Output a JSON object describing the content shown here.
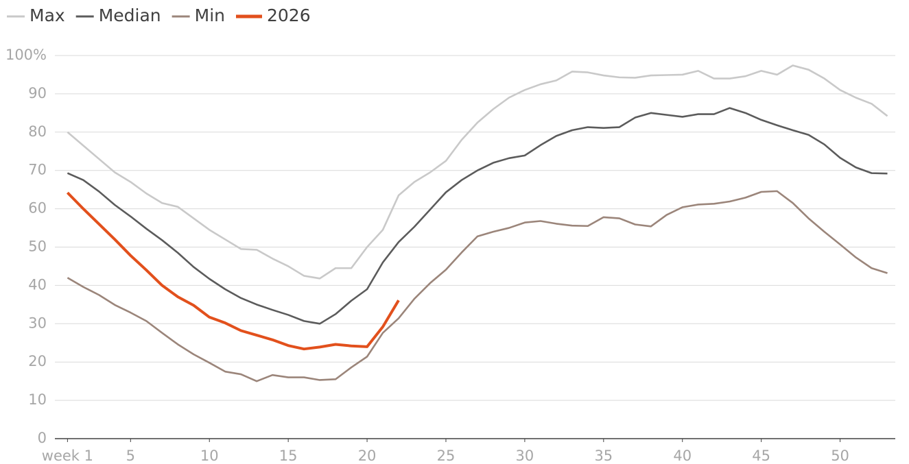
{
  "chart_data": {
    "type": "line",
    "x": [
      1,
      2,
      3,
      4,
      5,
      6,
      7,
      8,
      9,
      10,
      11,
      12,
      13,
      14,
      15,
      16,
      17,
      18,
      19,
      20,
      21,
      22,
      23,
      24,
      25,
      26,
      27,
      28,
      29,
      30,
      31,
      32,
      33,
      34,
      35,
      36,
      37,
      38,
      39,
      40,
      41,
      42,
      43,
      44,
      45,
      46,
      47,
      48,
      49,
      50,
      51,
      52,
      53
    ],
    "series": [
      {
        "name": "Max",
        "color": "#c9c9c9",
        "values": [
          80,
          76.5,
          73,
          69.5,
          67,
          64,
          61.5,
          60.5,
          57.5,
          54.5,
          52,
          49.5,
          49.3,
          47,
          45,
          42.5,
          41.8,
          44.5,
          44.5,
          50,
          54.5,
          63.5,
          67,
          69.5,
          72.5,
          78,
          82.5,
          86,
          89,
          91,
          92.5,
          93.5,
          95.8,
          95.6,
          94.8,
          94.3,
          94.2,
          94.8,
          94.9,
          95,
          96,
          94,
          94,
          94.6,
          96,
          95,
          97.4,
          96.3,
          94,
          91,
          89,
          87.4,
          84.2
        ]
      },
      {
        "name": "Median",
        "color": "#5b5b5b",
        "values": [
          69.3,
          67.5,
          64.5,
          61,
          58,
          54.8,
          51.8,
          48.5,
          44.8,
          41.7,
          39,
          36.7,
          35,
          33.6,
          32.3,
          30.7,
          30,
          32.5,
          36,
          39,
          46,
          51.3,
          55.3,
          59.8,
          64.3,
          67.5,
          70,
          72,
          73.2,
          73.9,
          76.6,
          79,
          80.5,
          81.3,
          81.1,
          81.3,
          83.8,
          85,
          84.5,
          84,
          84.7,
          84.7,
          86.3,
          85,
          83.2,
          81.8,
          80.5,
          79.3,
          76.8,
          73.3,
          70.8,
          69.3,
          69.2
        ]
      },
      {
        "name": "Min",
        "color": "#9b857a",
        "values": [
          42,
          39.6,
          37.5,
          34.9,
          32.9,
          30.7,
          27.6,
          24.6,
          22,
          19.8,
          17.5,
          16.8,
          15,
          16.6,
          16,
          16,
          15.3,
          15.5,
          18.6,
          21.4,
          27.6,
          31.4,
          36.5,
          40.6,
          44.1,
          48.6,
          52.8,
          54,
          55,
          56.4,
          56.8,
          56.1,
          55.6,
          55.5,
          57.8,
          57.5,
          55.9,
          55.4,
          58.4,
          60.4,
          61.1,
          61.3,
          61.9,
          62.9,
          64.4,
          64.6,
          61.5,
          57.5,
          54,
          50.7,
          47.3,
          44.5,
          43.2
        ]
      },
      {
        "name": "2026",
        "color": "#e2501c",
        "width": 4,
        "values": [
          64.2,
          60,
          56,
          52,
          47.8,
          44,
          40,
          37,
          34.8,
          31.7,
          30.2,
          28.2,
          27,
          25.8,
          24.3,
          23.4,
          23.9,
          24.6,
          24.2,
          24,
          29.2,
          36.1,
          null,
          null,
          null,
          null,
          null,
          null,
          null,
          null,
          null,
          null,
          null,
          null,
          null,
          null,
          null,
          null,
          null,
          null,
          null,
          null,
          null,
          null,
          null,
          null,
          null,
          null,
          null,
          null,
          null,
          null,
          null
        ]
      }
    ],
    "xlim": [
      0.2,
      53.5
    ],
    "xticks": [
      {
        "value": 1,
        "label": "week 1"
      },
      5,
      10,
      15,
      20,
      25,
      30,
      35,
      40,
      45,
      50
    ],
    "ylim": [
      0,
      100
    ],
    "yticks": [
      0,
      10,
      20,
      30,
      40,
      50,
      60,
      70,
      80,
      90,
      {
        "value": 100,
        "label": "100%"
      }
    ],
    "grid": true,
    "legend": "top-left"
  }
}
